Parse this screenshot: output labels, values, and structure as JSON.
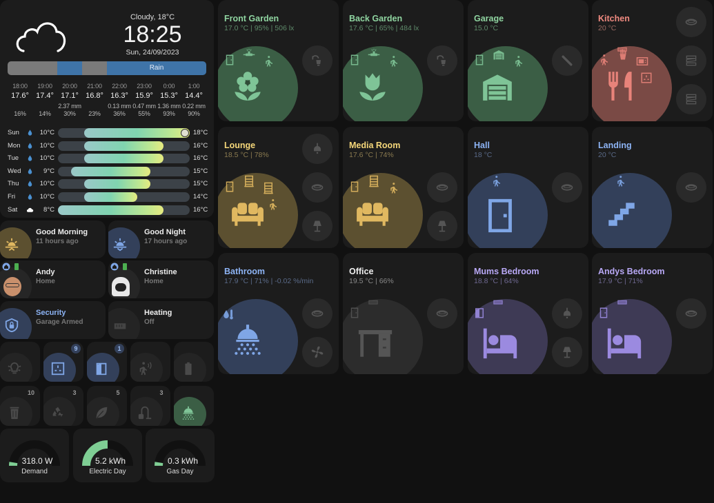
{
  "weather": {
    "condition": "Cloudy, 18°C",
    "time": "18:25",
    "date": "Sun, 24/09/2023",
    "icon": "cloud-icon",
    "precip_bar": [
      {
        "state": "dry",
        "from": 0,
        "to": 25
      },
      {
        "state": "rain",
        "from": 25,
        "to": 37.5
      },
      {
        "state": "dry",
        "from": 37.5,
        "to": 50
      },
      {
        "state": "rain",
        "from": 50,
        "to": 100,
        "label": "Rain"
      }
    ],
    "hourly": [
      {
        "time": "18:00",
        "temp": "17.6°",
        "mm": "",
        "prob": "16%"
      },
      {
        "time": "19:00",
        "temp": "17.4°",
        "mm": "",
        "prob": "14%"
      },
      {
        "time": "20:00",
        "temp": "17.1°",
        "mm": "2.37 mm",
        "prob": "30%"
      },
      {
        "time": "21:00",
        "temp": "16.8°",
        "mm": "",
        "prob": "23%"
      },
      {
        "time": "22:00",
        "temp": "16.3°",
        "mm": "0.13 mm",
        "prob": "36%"
      },
      {
        "time": "23:00",
        "temp": "15.9°",
        "mm": "0.47 mm",
        "prob": "55%"
      },
      {
        "time": "0:00",
        "temp": "15.3°",
        "mm": "1.36 mm",
        "prob": "93%"
      },
      {
        "time": "1:00",
        "temp": "14.4°",
        "mm": "0.22 mm",
        "prob": "90%"
      }
    ],
    "daily_range": [
      8,
      18
    ],
    "daily": [
      {
        "day": "Sun",
        "icon": "rain-drop-icon",
        "low": "10°C",
        "high": "18°C",
        "lo": 10,
        "hi": 18,
        "current": 18
      },
      {
        "day": "Mon",
        "icon": "rain-drop-icon",
        "low": "10°C",
        "high": "16°C",
        "lo": 10,
        "hi": 16
      },
      {
        "day": "Tue",
        "icon": "rain-drop-icon",
        "low": "10°C",
        "high": "16°C",
        "lo": 10,
        "hi": 16
      },
      {
        "day": "Wed",
        "icon": "rain-drop-icon",
        "low": "9°C",
        "high": "15°C",
        "lo": 9,
        "hi": 15
      },
      {
        "day": "Thu",
        "icon": "rain-drop-icon",
        "low": "10°C",
        "high": "15°C",
        "lo": 10,
        "hi": 15
      },
      {
        "day": "Fri",
        "icon": "rain-drop-icon",
        "low": "10°C",
        "high": "14°C",
        "lo": 10,
        "hi": 14
      },
      {
        "day": "Sat",
        "icon": "cloud-icon",
        "low": "8°C",
        "high": "16°C",
        "lo": 8,
        "hi": 16
      }
    ]
  },
  "colors": {
    "green": "#7fc497",
    "red": "#e8837a",
    "yellow": "#e0b860",
    "blue": "#7fa6e6",
    "purple": "#9b8ae0",
    "grey": "#5a5a5a"
  },
  "status_cards": [
    {
      "title": "Good Morning",
      "sub": "11 hours ago",
      "icon": "sunrise-icon",
      "color": "yellow"
    },
    {
      "title": "Good Night",
      "sub": "17 hours ago",
      "icon": "sunset-icon",
      "color": "blue"
    },
    {
      "title": "Andy",
      "sub": "Home",
      "icon": "avatar",
      "color": "none"
    },
    {
      "title": "Christine",
      "sub": "Home",
      "icon": "avatar",
      "color": "none"
    },
    {
      "title": "Security",
      "sub": "Garage Armed",
      "icon": "shield-lock-icon",
      "color": "blue"
    },
    {
      "title": "Heating",
      "sub": "Off",
      "icon": "radiator-icon",
      "color": "grey"
    }
  ],
  "small_tiles": [
    {
      "icon": "lightbulb-group-icon",
      "badge": "",
      "active": ""
    },
    {
      "icon": "socket-icon",
      "badge": "9",
      "active": "blue"
    },
    {
      "icon": "door-open-icon",
      "badge": "1",
      "active": "blue"
    },
    {
      "icon": "motion-sensor-icon",
      "badge": "",
      "active": ""
    },
    {
      "icon": "battery-icon",
      "badge": "",
      "active": ""
    },
    {
      "icon": "trash-icon",
      "badge": "10",
      "active": ""
    },
    {
      "icon": "recycle-icon",
      "badge": "3",
      "active": ""
    },
    {
      "icon": "leaf-icon",
      "badge": "5",
      "active": ""
    },
    {
      "icon": "vacuum-icon",
      "badge": "3",
      "active": ""
    },
    {
      "icon": "shower-icon",
      "badge": "",
      "active": "green"
    }
  ],
  "gauges": [
    {
      "value": "318.0 W",
      "label": "Demand",
      "level": 0.05
    },
    {
      "value": "5.2 kWh",
      "label": "Electric Day",
      "level": 0.5
    },
    {
      "value": "0.3 kWh",
      "label": "Gas Day",
      "level": 0.05
    }
  ],
  "rooms": [
    {
      "name": "Front Garden",
      "sub": "17.0 °C | 95% | 506 lx",
      "color": "green",
      "icon": "flower-icon",
      "sensors": [
        "door-icon",
        "sprinkler-icon",
        "walk-icon"
      ],
      "buttons": [
        "outdoor-lamp-icon"
      ]
    },
    {
      "name": "Back Garden",
      "sub": "17.6 °C | 65% | 484 lx",
      "color": "green",
      "icon": "tulip-icon",
      "sensors": [
        "door-icon",
        "sprinkler-icon",
        "walk-icon"
      ],
      "buttons": [
        "outdoor-lamp-icon"
      ]
    },
    {
      "name": "Garage",
      "sub": "15.0 °C",
      "color": "green",
      "icon": "garage-icon",
      "sensors": [
        "door-icon",
        "garage-icon",
        "walk-icon"
      ],
      "buttons": [
        "light-tube-icon"
      ]
    },
    {
      "name": "Kitchen",
      "sub": "20 °C",
      "color": "red",
      "icon": "cutlery-icon",
      "sensors": [
        "heater-icon",
        "walk-icon",
        "fries-icon",
        "microwave-icon",
        "socket-icon"
      ],
      "buttons": [
        "ceiling-light-icon",
        "light-strip-icon",
        "light-strip-icon"
      ]
    },
    {
      "name": "Lounge",
      "sub": "18.5 °C | 78%",
      "color": "yellow",
      "icon": "sofa-icon",
      "sensors": [
        "door-icon",
        "blinds-icon",
        "blinds-icon",
        "walk-icon"
      ],
      "buttons": [
        "pendant-light-icon",
        "ceiling-light-icon",
        "floor-lamp-icon"
      ]
    },
    {
      "name": "Media Room",
      "sub": "17.6 °C | 74%",
      "color": "yellow",
      "icon": "sofa-icon",
      "sensors": [
        "door-icon",
        "blinds-icon",
        "walk-icon"
      ],
      "buttons": [
        "ceiling-light-icon",
        "floor-lamp-icon"
      ]
    },
    {
      "name": "Hall",
      "sub": "18 °C",
      "color": "blue",
      "icon": "door-icon",
      "sensors": [
        "walk-icon"
      ],
      "buttons": [
        "ceiling-light-icon"
      ]
    },
    {
      "name": "Landing",
      "sub": "20 °C",
      "color": "blue",
      "icon": "stairs-icon",
      "sensors": [
        "walk-icon"
      ],
      "buttons": [
        "ceiling-light-icon"
      ]
    },
    {
      "name": "Bathroom",
      "sub": "17.9 °C | 71% | -0.02 %/min",
      "color": "blue",
      "icon": "shower-icon",
      "sensors": [
        "humidity-icon"
      ],
      "buttons": [
        "ceiling-light-icon",
        "fan-icon"
      ]
    },
    {
      "name": "Office",
      "sub": "19.5 °C | 66%",
      "color": "grey",
      "icon": "desk-icon",
      "sensors": [
        "heater-icon",
        "door-icon"
      ],
      "buttons": [
        "ceiling-light-icon"
      ]
    },
    {
      "name": "Mums Bedroom",
      "sub": "18.8 °C | 64%",
      "color": "purple",
      "icon": "bed-icon",
      "sensors": [
        "heater-icon",
        "door-open-icon"
      ],
      "buttons": [
        "pendant-light-icon",
        "floor-lamp-icon"
      ]
    },
    {
      "name": "Andys Bedroom",
      "sub": "17.9 °C | 71%",
      "color": "purple",
      "icon": "bed-icon",
      "sensors": [
        "heater-icon",
        "door-icon"
      ],
      "buttons": [
        "ceiling-light-icon"
      ]
    }
  ]
}
